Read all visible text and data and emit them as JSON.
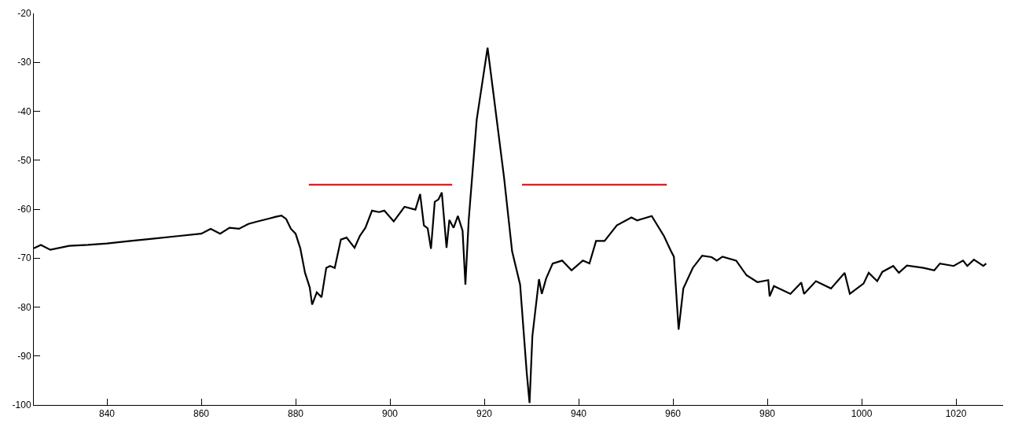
{
  "chart_data": {
    "type": "line",
    "xlim": [
      824.5,
      1030
    ],
    "ylim": [
      -100,
      -20
    ],
    "xticks": [
      840,
      860,
      880,
      900,
      920,
      940,
      960,
      980,
      1000,
      1020
    ],
    "yticks": [
      -100,
      -90,
      -80,
      -70,
      -60,
      -50,
      -40,
      -30,
      -20
    ],
    "marker": "none",
    "line_style": "solid",
    "series": [
      {
        "color": "#000000",
        "x": [
          824.5,
          826,
          828,
          832,
          836,
          840,
          845,
          850,
          855,
          860,
          862,
          864,
          866,
          868,
          870,
          872,
          874,
          876,
          877,
          878,
          879,
          880,
          881,
          882,
          883,
          883.5,
          884.5,
          885.5,
          886.5,
          887.3,
          888.3,
          889.6,
          890.8,
          892.5,
          893.6,
          894.8,
          896.2,
          897.7,
          898.8,
          900.8,
          903.1,
          905.4,
          906.4,
          907.2,
          908,
          908.7,
          909.5,
          910.3,
          911,
          912,
          912.6,
          913.5,
          914.4,
          915.4,
          916,
          916.7,
          918.4,
          920.7,
          921.8,
          924.2,
          925.9,
          927.6,
          929,
          929.6,
          930.2,
          931.6,
          932.2,
          933.1,
          934.5,
          936.5,
          938.5,
          940.9,
          942.3,
          943.7,
          945.5,
          948.1,
          951.2,
          952.4,
          955.5,
          958.1,
          959.6,
          960.2,
          961.2,
          962.2,
          964.2,
          966.2,
          968.2,
          969.3,
          970.5,
          973.4,
          975.6,
          977.9,
          980.2,
          980.5,
          981.4,
          984.9,
          987.2,
          987.8,
          990.3,
          993.5,
          996.4,
          997.5,
          1000.4,
          1001.5,
          1003.3,
          1004.4,
          1006.7,
          1007.9,
          1009.6,
          1013.1,
          1015.4,
          1016.6,
          1019.5,
          1021.5,
          1022.4,
          1023.8,
          1025.8,
          1026.4
        ],
        "values": [
          -68,
          -67.3,
          -68.3,
          -67.5,
          -67.3,
          -67,
          -66.5,
          -66,
          -65.5,
          -65,
          -64,
          -65,
          -63.8,
          -64,
          -63,
          -62.5,
          -62,
          -61.5,
          -61.3,
          -62,
          -64,
          -65,
          -68,
          -73,
          -76,
          -79.5,
          -77,
          -78,
          -72,
          -71.6,
          -72,
          -66.2,
          -65.8,
          -67.9,
          -65.5,
          -63.8,
          -60.3,
          -60.6,
          -60.3,
          -62.5,
          -59.5,
          -60.1,
          -56.9,
          -63.3,
          -63.9,
          -68.1,
          -58.5,
          -58,
          -56.6,
          -67.9,
          -62.2,
          -63.8,
          -61.4,
          -64.4,
          -75.4,
          -62.2,
          -41.7,
          -27,
          -35.3,
          -53.6,
          -68.6,
          -75.4,
          -93.4,
          -99.6,
          -85.9,
          -74.3,
          -77.3,
          -74.2,
          -71.1,
          -70.5,
          -72.5,
          -70.5,
          -71.1,
          -66.5,
          -66.5,
          -63.3,
          -61.7,
          -62.3,
          -61.4,
          -65.5,
          -68.6,
          -69.7,
          -84.6,
          -76.2,
          -72,
          -69.5,
          -69.8,
          -70.5,
          -69.7,
          -70.5,
          -73.5,
          -74.9,
          -74.5,
          -77.8,
          -75.7,
          -77.3,
          -75,
          -77.3,
          -74.7,
          -76.2,
          -73,
          -77.3,
          -75.2,
          -73,
          -74.7,
          -72.8,
          -71.6,
          -73,
          -71.5,
          -72,
          -72.5,
          -71.1,
          -71.6,
          -70.5,
          -71.6,
          -70.3,
          -71.6,
          -71.1
        ]
      },
      {
        "color": "#e31a1c",
        "x": [
          882.8,
          913.2
        ],
        "values": [
          -55,
          -55
        ]
      },
      {
        "color": "#e31a1c",
        "x": [
          928,
          958.7
        ],
        "values": [
          -55,
          -55
        ]
      }
    ]
  }
}
